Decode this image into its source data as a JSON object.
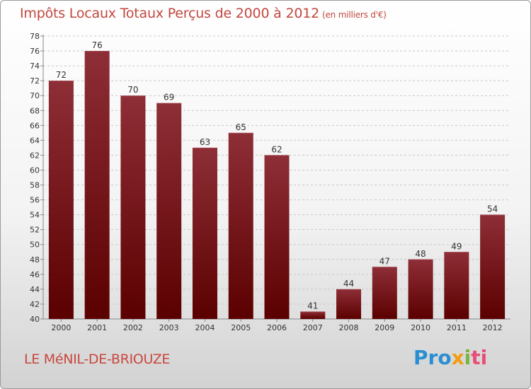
{
  "title": "Impôts Locaux Totaux Perçus de 2000 à 2012",
  "subtitle": "(en milliers d'€)",
  "location": "LE MéNIL-DE-BRIOUZE",
  "logo": {
    "text": "Proxiti",
    "parts": [
      "Pro",
      "x",
      "i",
      "ti"
    ]
  },
  "colors": {
    "bar_top": "#8e2e37",
    "bar_bottom": "#5b0000",
    "title": "#c2473e",
    "grid": "#c8c8c8"
  },
  "chart_data": {
    "type": "bar",
    "title": "Impôts Locaux Totaux Perçus de 2000 à 2012 (en milliers d'€)",
    "categories": [
      "2000",
      "2001",
      "2002",
      "2003",
      "2004",
      "2005",
      "2006",
      "2007",
      "2008",
      "2009",
      "2010",
      "2011",
      "2012"
    ],
    "values": [
      72,
      76,
      70,
      69,
      63,
      65,
      62,
      41,
      44,
      47,
      48,
      49,
      54
    ],
    "ylim": [
      40,
      78
    ],
    "yticks": [
      40,
      42,
      44,
      46,
      48,
      50,
      52,
      54,
      56,
      58,
      60,
      62,
      64,
      66,
      68,
      70,
      72,
      74,
      76,
      78
    ],
    "xlabel": "",
    "ylabel": "",
    "grid": true
  }
}
